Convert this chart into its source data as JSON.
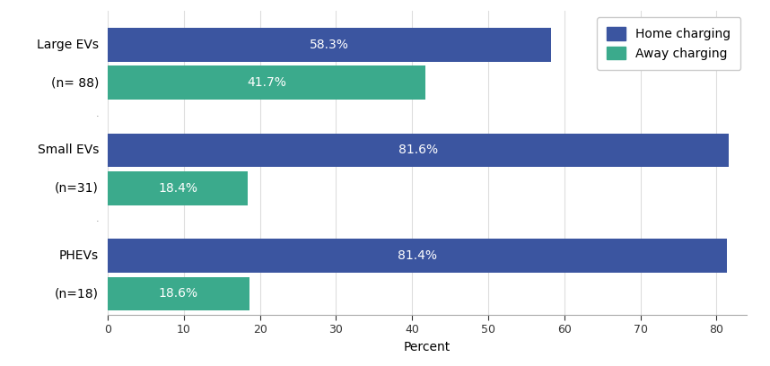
{
  "groups": [
    {
      "label_home": "Large EVs",
      "label_away": "(n= 88)",
      "home_value": 58.3,
      "away_value": 41.7
    },
    {
      "label_home": "Small EVs",
      "label_away": "(n=31)",
      "home_value": 81.6,
      "away_value": 18.4
    },
    {
      "label_home": "PHEVs",
      "label_away": "(n=18)",
      "home_value": 81.4,
      "away_value": 18.6
    }
  ],
  "home_color": "#3B55A0",
  "away_color": "#3BAA8C",
  "bar_height": 0.32,
  "xlim": [
    0,
    84
  ],
  "xticks": [
    0,
    10,
    20,
    30,
    40,
    50,
    60,
    70,
    80
  ],
  "xlabel": "Percent",
  "legend_labels": [
    "Home charging",
    "Away charging"
  ],
  "text_color": "#ffffff",
  "label_fontsize": 10,
  "tick_fontsize": 9,
  "value_fontsize": 10
}
